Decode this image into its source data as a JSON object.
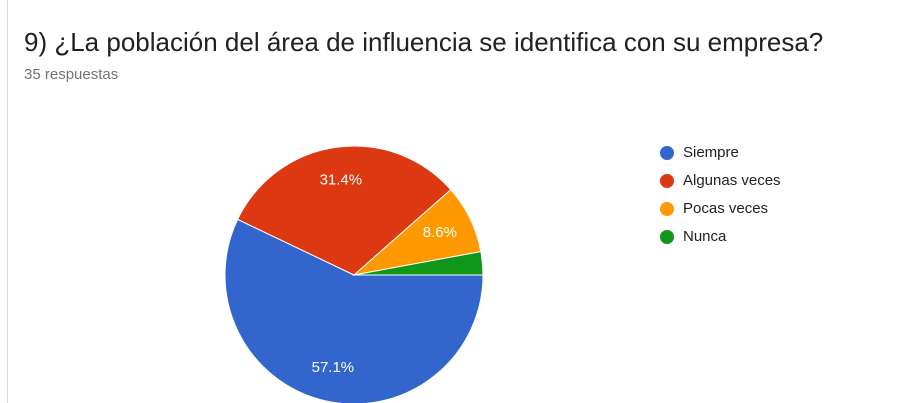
{
  "chart_data": {
    "type": "pie",
    "title": "9) ¿La población del área de influencia se identifica con su empresa?",
    "subtitle": "35 respuestas",
    "categories": [
      "Siempre",
      "Algunas veces",
      "Pocas veces",
      "Nunca"
    ],
    "values": [
      57.1,
      31.4,
      8.6,
      2.9
    ],
    "value_labels": [
      "57.1%",
      "31.4%",
      "8.6%",
      null
    ],
    "colors": [
      "#3366cc",
      "#dc3912",
      "#ff9900",
      "#109618"
    ],
    "legend": "right"
  }
}
